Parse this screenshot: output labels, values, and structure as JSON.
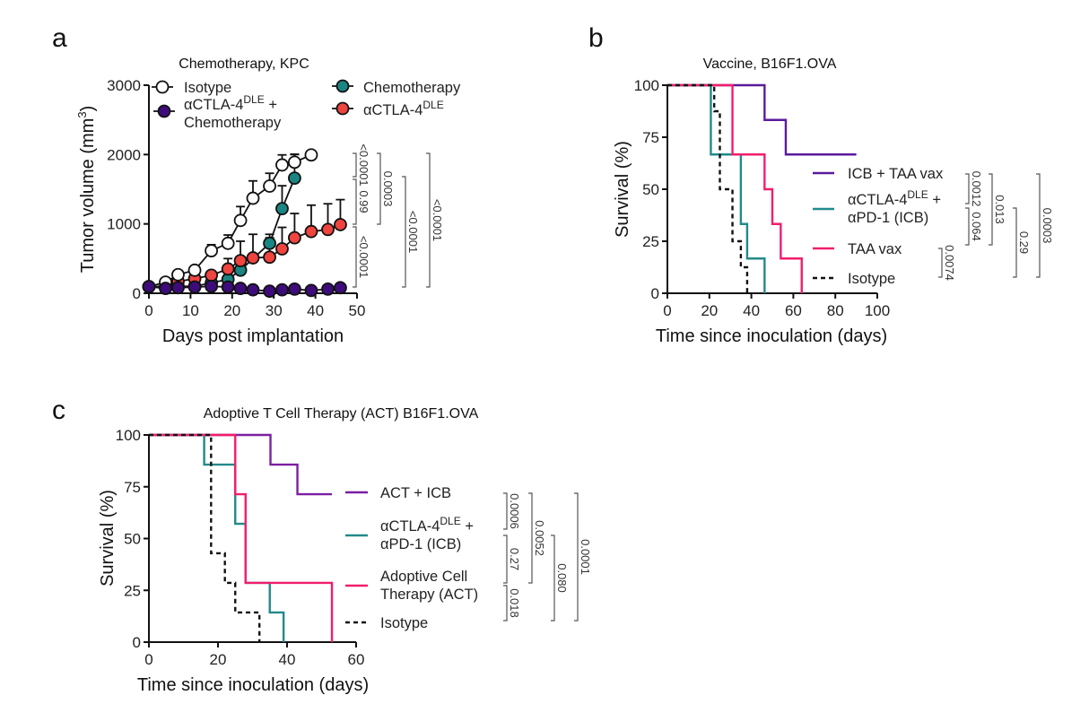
{
  "chart_data": [
    {
      "panel_letter": "a",
      "type": "line",
      "title": "Chemotherapy, KPC",
      "xlabel": "Days post implantation",
      "ylabel": {
        "main": "Tumor volume (mm",
        "sup": "3",
        "tail": ")"
      },
      "xlim": [
        0,
        50
      ],
      "ylim": [
        0,
        3000
      ],
      "xticks": [
        "0",
        "10",
        "20",
        "30",
        "40",
        "50"
      ],
      "yticks": [
        "0",
        "1000",
        "2000",
        "3000"
      ],
      "legend_placement": "top",
      "series": [
        {
          "name": {
            "main": "Isotype"
          },
          "color": "#ffffff",
          "x": [
            0,
            4,
            7,
            11,
            15,
            19,
            22,
            25,
            29,
            32,
            35,
            39
          ],
          "y": [
            95,
            160,
            268,
            332,
            613,
            720,
            1050,
            1370,
            1545,
            1850,
            1890,
            1995
          ],
          "error_upper": [
            null,
            null,
            null,
            null,
            700,
            840,
            1250,
            1620,
            1730,
            1995,
            2005,
            null
          ]
        },
        {
          "name": {
            "main": "αCTLA-4",
            "sup": "DLE",
            "tail": " +",
            "line2": "Chemotherapy"
          },
          "color": "#3d0c7a",
          "x": [
            0,
            4,
            7,
            11,
            15,
            19,
            22,
            25,
            29,
            32,
            35,
            39,
            43,
            46
          ],
          "y": [
            95,
            70,
            80,
            90,
            100,
            90,
            70,
            50,
            30,
            50,
            60,
            40,
            60,
            80
          ],
          "error_upper": [
            null,
            null,
            null,
            null,
            null,
            null,
            null,
            null,
            null,
            null,
            null,
            null,
            null,
            null
          ]
        },
        {
          "name": {
            "main": "Chemotherapy"
          },
          "color": "#1a8582",
          "x": [
            0,
            4,
            7,
            11,
            15,
            19,
            22,
            29,
            32,
            35
          ],
          "y": [
            95,
            80,
            100,
            100,
            150,
            200,
            333,
            720,
            1220,
            1660
          ],
          "error_upper": [
            null,
            null,
            null,
            null,
            null,
            null,
            null,
            800,
            1550,
            2000
          ]
        },
        {
          "name": {
            "main": "αCTLA-4",
            "sup": "DLE"
          },
          "color": "#f0443f",
          "x": [
            0,
            4,
            7,
            11,
            15,
            19,
            22,
            25,
            29,
            32,
            35,
            39,
            43,
            46
          ],
          "y": [
            95,
            100,
            170,
            210,
            260,
            350,
            470,
            510,
            520,
            640,
            800,
            890,
            920,
            990
          ],
          "error_upper": [
            null,
            null,
            null,
            null,
            null,
            500,
            750,
            850,
            850,
            950,
            1150,
            1270,
            1290,
            1350
          ]
        }
      ],
      "p_values": [
        "<0.0001",
        "0.99",
        "<0.0001",
        "0.0003",
        "<0.0001",
        "<0.0001"
      ]
    },
    {
      "panel_letter": "b",
      "type": "line",
      "subtype": "kaplan-meier",
      "title": "Vaccine, B16F1.OVA",
      "xlabel": "Time since inoculation (days)",
      "ylabel": {
        "main": "Survival  (%)"
      },
      "xlim": [
        0,
        100
      ],
      "ylim": [
        0,
        100
      ],
      "xticks": [
        "0",
        "20",
        "40",
        "60",
        "80",
        "100"
      ],
      "yticks": [
        "0",
        "25",
        "50",
        "75",
        "100"
      ],
      "legend_placement": "right",
      "series": [
        {
          "name": {
            "main": "ICB + TAA vax"
          },
          "color": "#5a1a9c",
          "dashed": false,
          "steps": [
            [
              0,
              100
            ],
            [
              46.3,
              83.3
            ],
            [
              56.4,
              66.7
            ]
          ],
          "end": 90
        },
        {
          "name": {
            "main": "αCTLA-4",
            "sup": "DLE",
            "tail": " +",
            "line2": "αPD-1 (ICB)"
          },
          "color": "#23898a",
          "dashed": false,
          "steps": [
            [
              0,
              100
            ],
            [
              20.7,
              66.7
            ],
            [
              35,
              33.3
            ],
            [
              38,
              16.7
            ],
            [
              46.3,
              0
            ]
          ],
          "end": 46.3
        },
        {
          "name": {
            "main": "TAA vax"
          },
          "color": "#f21d6d",
          "dashed": false,
          "steps": [
            [
              0,
              100
            ],
            [
              31,
              66.7
            ],
            [
              46.3,
              50
            ],
            [
              50,
              33.3
            ],
            [
              54,
              16.7
            ],
            [
              64,
              0
            ]
          ],
          "end": 64
        },
        {
          "name": {
            "main": "Isotype"
          },
          "color": "#111111",
          "dashed": true,
          "steps": [
            [
              0,
              100
            ],
            [
              22.3,
              87.5
            ],
            [
              25,
              50
            ],
            [
              31,
              25
            ],
            [
              35,
              12.5
            ],
            [
              38,
              0
            ]
          ],
          "end": 38
        }
      ],
      "p_values": [
        "0.0012",
        "0.064",
        "0.0074",
        "0.013",
        "0.29",
        "0.0003"
      ]
    },
    {
      "panel_letter": "c",
      "type": "line",
      "subtype": "kaplan-meier",
      "title": "Adoptive T Cell Therapy (ACT) B16F1.OVA",
      "xlabel": "Time since inoculation (days)",
      "ylabel": {
        "main": "Survival (%)"
      },
      "xlim": [
        0,
        60
      ],
      "ylim": [
        0,
        100
      ],
      "xticks": [
        "0",
        "20",
        "40",
        "60"
      ],
      "yticks": [
        "0",
        "25",
        "50",
        "75",
        "100"
      ],
      "legend_placement": "right",
      "series": [
        {
          "name": {
            "main": "ACT + ICB"
          },
          "color": "#7b1fa2",
          "dashed": false,
          "steps": [
            [
              0,
              100
            ],
            [
              35.2,
              85.7
            ],
            [
              43,
              71.4
            ]
          ],
          "end": 53
        },
        {
          "name": {
            "main": "αCTLA-4",
            "sup": "DLE",
            "tail": " +",
            "line2": "αPD-1 (ICB)"
          },
          "color": "#23898a",
          "dashed": false,
          "steps": [
            [
              0,
              100
            ],
            [
              16,
              85.7
            ],
            [
              25,
              57.1
            ],
            [
              28,
              28.6
            ],
            [
              35,
              14.3
            ],
            [
              39,
              0
            ]
          ],
          "end": 39
        },
        {
          "name": {
            "main": "Adoptive Cell",
            "line2": "Therapy (ACT)"
          },
          "color": "#f21d6d",
          "dashed": false,
          "steps": [
            [
              0,
              100
            ],
            [
              25,
              71.4
            ],
            [
              28,
              28.6
            ],
            [
              53,
              0
            ]
          ],
          "end": 53
        },
        {
          "name": {
            "main": "Isotype"
          },
          "color": "#111111",
          "dashed": true,
          "steps": [
            [
              0,
              100
            ],
            [
              18,
              42.9
            ],
            [
              22,
              28.6
            ],
            [
              25,
              14.3
            ],
            [
              32,
              0
            ]
          ],
          "end": 32
        }
      ],
      "p_values": [
        "0.0006",
        "0.27",
        "0.018",
        "0.0052",
        "0.080",
        "0.0001"
      ]
    }
  ]
}
